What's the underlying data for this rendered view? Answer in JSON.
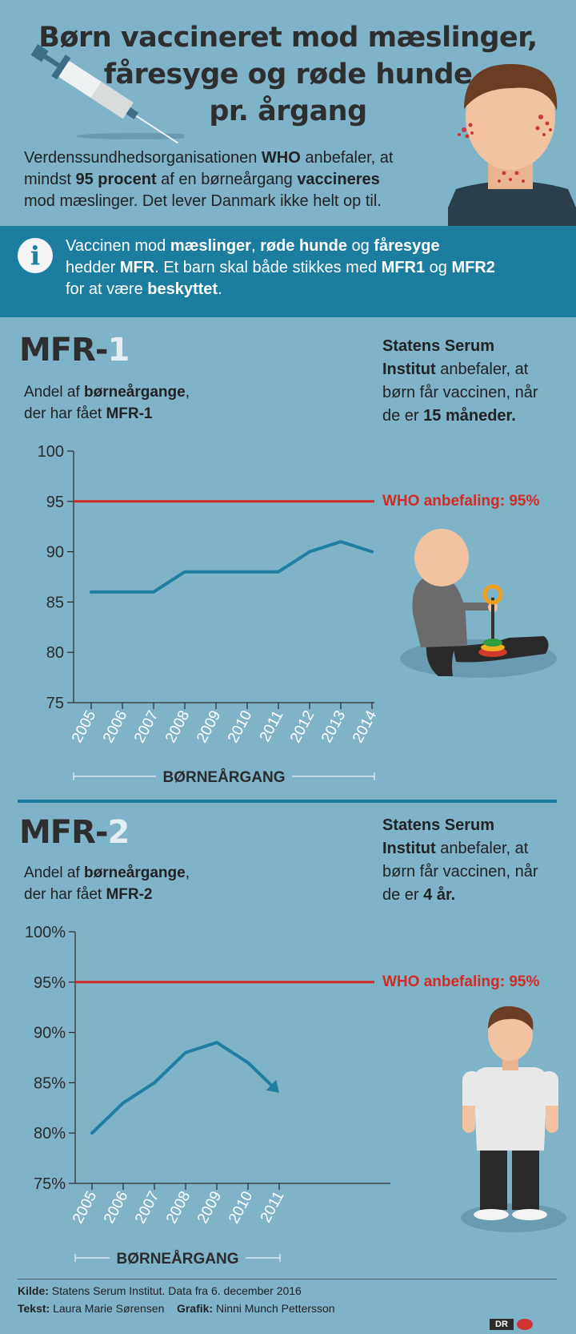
{
  "header": {
    "title_lines": [
      "Børn vaccineret mod mæslinger,",
      "fåresyge og røde hunde",
      "pr. årgang"
    ],
    "intro_lines": [
      [
        {
          "t": "Verdenssundhedsorganisationen "
        },
        {
          "t": "WHO",
          "b": true
        },
        {
          "t": " anbefaler, at"
        }
      ],
      [
        {
          "t": "mindst "
        },
        {
          "t": "95 procent",
          "b": true
        },
        {
          "t": " af en børneårgang "
        },
        {
          "t": "vaccineres",
          "b": true
        }
      ],
      [
        {
          "t": "mod mæslinger. Det lever Danmark ikke helt op til."
        }
      ]
    ]
  },
  "info": {
    "icon": "i",
    "lines": [
      [
        {
          "t": "Vaccinen mod "
        },
        {
          "t": "mæslinger",
          "b": true
        },
        {
          "t": ", "
        },
        {
          "t": "røde hunde",
          "b": true
        },
        {
          "t": " og "
        },
        {
          "t": "fåresyge",
          "b": true
        }
      ],
      [
        {
          "t": "hedder "
        },
        {
          "t": "MFR",
          "b": true
        },
        {
          "t": ". Et barn skal både stikkes med "
        },
        {
          "t": "MFR1",
          "b": true
        },
        {
          "t": " og "
        },
        {
          "t": "MFR2",
          "b": true
        }
      ],
      [
        {
          "t": "for at være "
        },
        {
          "t": "beskyttet",
          "b": true
        },
        {
          "t": "."
        }
      ]
    ]
  },
  "mfr1": {
    "heading_prefix": "MFR-",
    "heading_num": "1",
    "subtitle_lines": [
      [
        {
          "t": "Andel af "
        },
        {
          "t": "børneårgange",
          "b": true
        },
        {
          "t": ","
        }
      ],
      [
        {
          "t": "der har fået "
        },
        {
          "t": "MFR-1",
          "b": true
        }
      ]
    ],
    "ssi_lines": [
      [
        {
          "t": "Statens Serum",
          "b": true
        }
      ],
      [
        {
          "t": "Institut",
          "b": true
        },
        {
          "t": " anbefaler, at"
        }
      ],
      [
        {
          "t": "børn får vaccinen, når"
        }
      ],
      [
        {
          "t": "de er "
        },
        {
          "t": "15 måneder.",
          "b": true
        }
      ]
    ]
  },
  "mfr2": {
    "heading_prefix": "MFR-",
    "heading_num": "2",
    "subtitle_lines": [
      [
        {
          "t": "Andel af "
        },
        {
          "t": "børneårgange",
          "b": true
        },
        {
          "t": ","
        }
      ],
      [
        {
          "t": "der har fået "
        },
        {
          "t": "MFR-2",
          "b": true
        }
      ]
    ],
    "ssi_lines": [
      [
        {
          "t": "Statens Serum",
          "b": true
        }
      ],
      [
        {
          "t": "Institut",
          "b": true
        },
        {
          "t": " anbefaler, at"
        }
      ],
      [
        {
          "t": "børn får vaccinen, når"
        }
      ],
      [
        {
          "t": "de er "
        },
        {
          "t": "4 år.",
          "b": true
        }
      ]
    ]
  },
  "chart_data": [
    {
      "type": "line",
      "x": [
        "2005",
        "2006",
        "2007",
        "2008",
        "2009",
        "2010",
        "2011",
        "2012",
        "2013",
        "2014"
      ],
      "series": [
        {
          "values": [
            86,
            86,
            86,
            88,
            88,
            88,
            88,
            90,
            91,
            90
          ]
        }
      ],
      "yticks": [
        "100",
        "95",
        "90",
        "85",
        "80",
        "75"
      ],
      "ylim": [
        75,
        100
      ],
      "xlabel": "BØRNEÅRGANG",
      "reference": {
        "value": 95,
        "label": "WHO anbefaling: 95%",
        "color": "#d22b26"
      },
      "line_color": "#1f7ea1",
      "arrow_end": false
    },
    {
      "type": "line",
      "x": [
        "2005",
        "2006",
        "2007",
        "2008",
        "2009",
        "2010",
        "2011"
      ],
      "series": [
        {
          "values": [
            80,
            83,
            85,
            88,
            89,
            87,
            84
          ]
        }
      ],
      "yticks": [
        "100%",
        "95%",
        "90%",
        "85%",
        "80%",
        "75%"
      ],
      "ylim": [
        75,
        100
      ],
      "xlabel": "BØRNEÅRGANG",
      "reference": {
        "value": 95,
        "label": "WHO anbefaling: 95%",
        "color": "#d22b26"
      },
      "line_color": "#1f7ea1",
      "arrow_end": true
    }
  ],
  "footer": {
    "source_label": "Kilde:",
    "source_text": " Statens Serum Institut. Data fra 6. december 2016",
    "text_label": "Tekst:",
    "text_name": " Laura Marie Sørensen",
    "grafik_label": "Grafik:",
    "grafik_name": " Ninni Munch Pettersson",
    "logo": "DR"
  },
  "colors": {
    "background": "#7fb3c8",
    "band": "#1d7da0",
    "line": "#1f7ea1",
    "who": "#d22b26"
  }
}
